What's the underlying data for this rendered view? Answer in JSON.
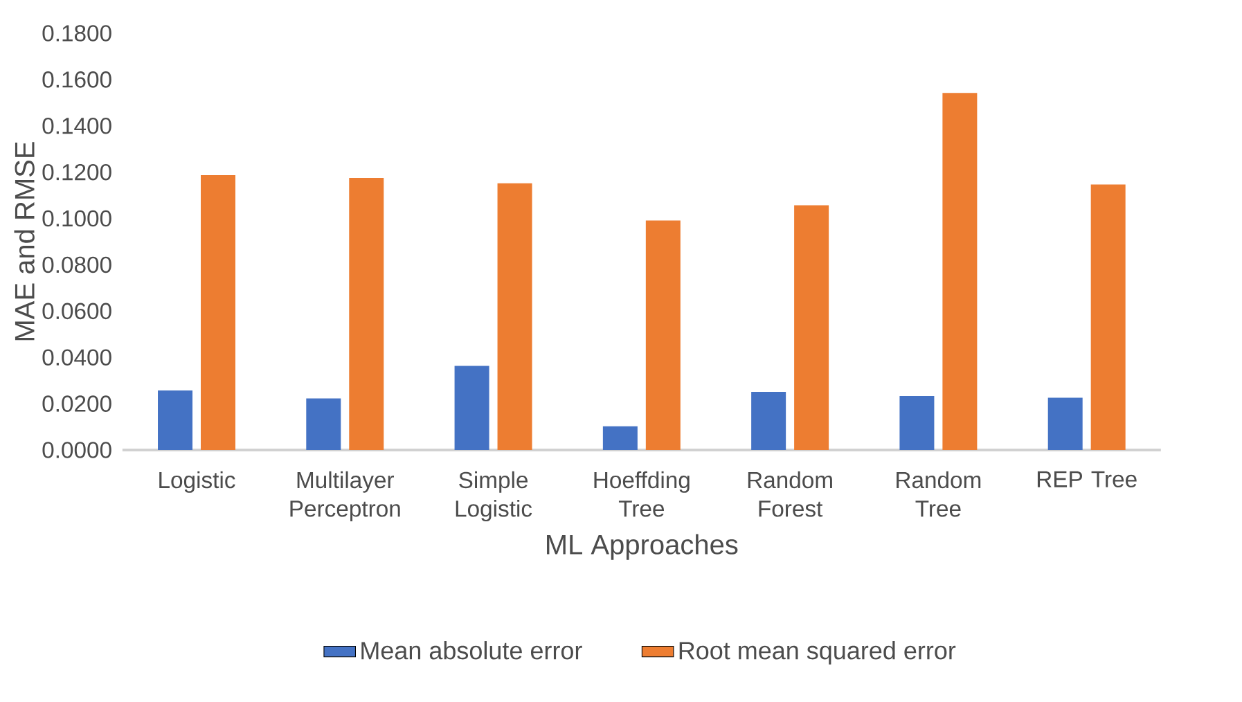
{
  "chart_data": {
    "type": "bar",
    "xlabel": "ML Approaches",
    "ylabel": "MAE and RMSE",
    "categories": [
      "Logistic",
      "Multilayer Perceptron",
      "Simple Logistic",
      "Hoeffding Tree",
      "Random Forest",
      "Random Tree",
      "REP Tree"
    ],
    "series": [
      {
        "name": "Mean absolute error",
        "color": "#4472c4",
        "values": [
          0.0257,
          0.0223,
          0.0363,
          0.0102,
          0.0251,
          0.0233,
          0.0226
        ]
      },
      {
        "name": "Root mean squared error",
        "color": "#ed7d31",
        "values": [
          0.1187,
          0.1175,
          0.1152,
          0.0991,
          0.1057,
          0.1542,
          0.1147
        ]
      }
    ],
    "ylim": [
      0,
      0.18
    ],
    "yticks": [
      {
        "value": 0,
        "label": "0.0000"
      },
      {
        "value": 0.02,
        "label": "0.0200"
      },
      {
        "value": 0.04,
        "label": "0.0400"
      },
      {
        "value": 0.06,
        "label": "0.0600"
      },
      {
        "value": 0.08,
        "label": "0.0800"
      },
      {
        "value": 0.1,
        "label": "0.1000"
      },
      {
        "value": 0.12,
        "label": "0.1200"
      },
      {
        "value": 0.14,
        "label": "0.1400"
      },
      {
        "value": 0.16,
        "label": "0.1600"
      },
      {
        "value": 0.18,
        "label": "0.1800"
      }
    ],
    "legend": "bottom"
  }
}
